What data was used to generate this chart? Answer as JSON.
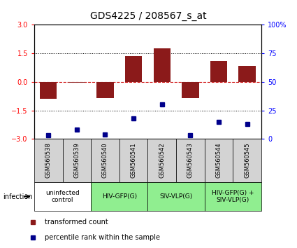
{
  "title": "GDS4225 / 208567_s_at",
  "samples": [
    "GSM560538",
    "GSM560539",
    "GSM560540",
    "GSM560541",
    "GSM560542",
    "GSM560543",
    "GSM560544",
    "GSM560545"
  ],
  "transformed_counts": [
    -0.9,
    -0.05,
    -0.85,
    1.35,
    1.75,
    -0.85,
    1.1,
    0.85
  ],
  "percentile_ranks": [
    3,
    8,
    4,
    18,
    30,
    3,
    15,
    13
  ],
  "ylim_left": [
    -3,
    3
  ],
  "ylim_right": [
    0,
    100
  ],
  "yticks_left": [
    -3,
    -1.5,
    0,
    1.5,
    3
  ],
  "yticks_right": [
    0,
    25,
    50,
    75,
    100
  ],
  "groups": [
    {
      "label": "uninfected\ncontrol",
      "start": 0,
      "end": 2,
      "color": "#ffffff"
    },
    {
      "label": "HIV-GFP(G)",
      "start": 2,
      "end": 4,
      "color": "#90ee90"
    },
    {
      "label": "SIV-VLP(G)",
      "start": 4,
      "end": 6,
      "color": "#90ee90"
    },
    {
      "label": "HIV-GFP(G) +\nSIV-VLP(G)",
      "start": 6,
      "end": 8,
      "color": "#90ee90"
    }
  ],
  "bar_color": "#8b1a1a",
  "dot_color": "#00008b",
  "zero_line_color": "#cc0000",
  "grid_color": "#000000",
  "background_color": "#ffffff",
  "sample_box_color": "#d3d3d3",
  "title_fontsize": 10,
  "axis_fontsize": 7,
  "tick_fontsize": 7,
  "label_fontsize": 7,
  "infection_label": "infection",
  "legend_items": [
    {
      "color": "#8b1a1a",
      "label": "transformed count"
    },
    {
      "color": "#00008b",
      "label": "percentile rank within the sample"
    }
  ]
}
